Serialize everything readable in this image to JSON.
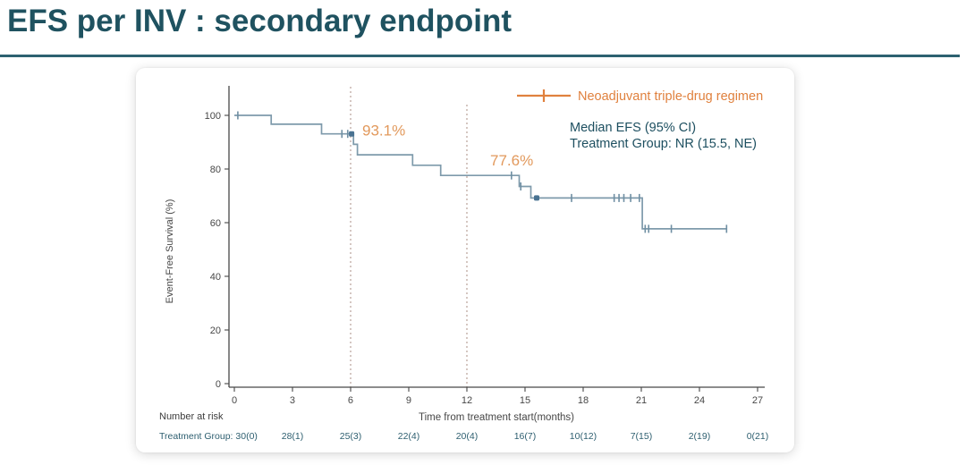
{
  "page": {
    "title": "EFS per INV : secondary endpoint",
    "title_color": "#1f5260",
    "underline_color": "#2d6170"
  },
  "chart_data": {
    "type": "line",
    "subtype": "kaplan-meier-step",
    "xlabel": "Time from treatment start(months)",
    "ylabel": "Event-Free Survival (%)",
    "xlim": [
      0,
      27
    ],
    "ylim": [
      0,
      100
    ],
    "x_ticks": [
      0,
      3,
      6,
      9,
      12,
      15,
      18,
      21,
      24,
      27
    ],
    "y_ticks": [
      0,
      20,
      40,
      60,
      80,
      100
    ],
    "grid": false,
    "axis_color": "#474747",
    "legend": {
      "label": "Neoadjuvant triple-drug regimen",
      "color": "#e0813e",
      "position": "top-right"
    },
    "median_note": {
      "lines": [
        "Median EFS (95% CI)",
        "Treatment Group: NR (15.5, NE)"
      ],
      "color": "#1d4f60"
    },
    "series": [
      {
        "name": "Neoadjuvant triple-drug regimen",
        "color": "#7e9aab",
        "censor_color": "#6f8fa3",
        "bold_censor_color": "#4a7392",
        "step_points": [
          [
            0,
            100
          ],
          [
            1.9,
            100
          ],
          [
            1.9,
            96.7
          ],
          [
            4.5,
            96.7
          ],
          [
            4.5,
            93.1
          ],
          [
            6.15,
            93.1
          ],
          [
            6.15,
            89.2
          ],
          [
            6.35,
            89.2
          ],
          [
            6.35,
            85.3
          ],
          [
            9.2,
            85.3
          ],
          [
            9.2,
            81.4
          ],
          [
            10.65,
            81.4
          ],
          [
            10.65,
            77.6
          ],
          [
            14.7,
            77.6
          ],
          [
            14.7,
            73.5
          ],
          [
            15.3,
            73.5
          ],
          [
            15.3,
            69.2
          ],
          [
            21.05,
            69.2
          ],
          [
            21.05,
            57.7
          ],
          [
            25.4,
            57.7
          ]
        ],
        "censor_marks": [
          [
            0.18,
            100
          ],
          [
            5.55,
            93.1
          ],
          [
            5.85,
            93.1
          ],
          [
            14.3,
            77.6
          ],
          [
            14.78,
            73.5
          ],
          [
            17.4,
            69.2
          ],
          [
            19.6,
            69.2
          ],
          [
            19.85,
            69.2
          ],
          [
            20.1,
            69.2
          ],
          [
            20.45,
            69.2
          ],
          [
            20.9,
            69.2
          ],
          [
            21.2,
            57.7
          ],
          [
            21.38,
            57.7
          ],
          [
            22.55,
            57.7
          ],
          [
            25.4,
            57.7
          ]
        ],
        "bold_censor_dots": [
          [
            6.05,
            93.1
          ],
          [
            15.6,
            69.2
          ]
        ]
      }
    ],
    "annotations": [
      {
        "text": "93.1%",
        "month": 6.6,
        "pct": 93.1,
        "dy": 2
      },
      {
        "text": "77.6%",
        "month": 13.2,
        "pct": 77.6,
        "dy": -11
      }
    ],
    "annotation_color": "#e2995c",
    "reference_lines": {
      "months": [
        6,
        12
      ],
      "color": "#ab8f85"
    },
    "at_risk": {
      "header": "Number at risk",
      "header_color": "#3d3d3d",
      "row_label": "Treatment Group:",
      "values": [
        "30(0)",
        "28(1)",
        "25(3)",
        "22(4)",
        "20(4)",
        "16(7)",
        "10(12)",
        "7(15)",
        "2(19)",
        "0(21)"
      ],
      "color": "#2e5f70"
    }
  }
}
